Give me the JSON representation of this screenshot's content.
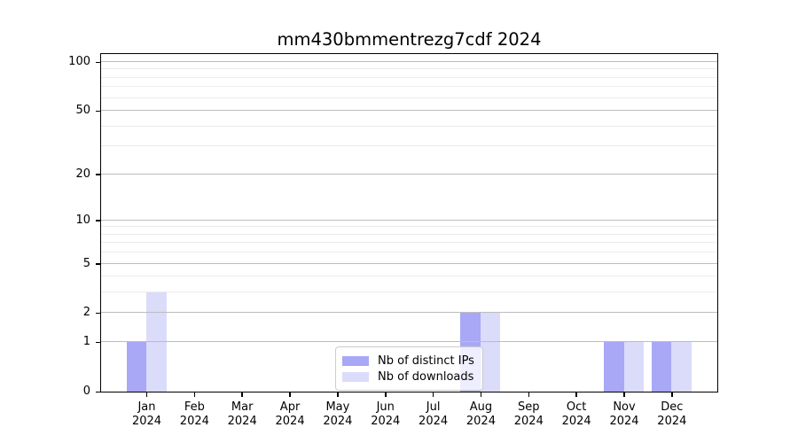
{
  "title": "mm430bmmentrezg7cdf 2024",
  "chart_data": {
    "type": "bar",
    "title": "mm430bmmentrezg7cdf 2024",
    "categories": [
      "Jan 2024",
      "Feb 2024",
      "Mar 2024",
      "Apr 2024",
      "May 2024",
      "Jun 2024",
      "Jul 2024",
      "Aug 2024",
      "Sep 2024",
      "Oct 2024",
      "Nov 2024",
      "Dec 2024"
    ],
    "series": [
      {
        "name": "Nb of distinct IPs",
        "color": "#a8a8f7",
        "values": [
          1,
          0,
          0,
          0,
          0,
          0,
          0,
          2,
          0,
          0,
          1,
          1
        ]
      },
      {
        "name": "Nb of downloads",
        "color": "#dbdbfa",
        "values": [
          3,
          0,
          0,
          0,
          0,
          0,
          0,
          2,
          0,
          0,
          1,
          1
        ]
      }
    ],
    "xlabel": "",
    "ylabel": "",
    "yscale": "log1p",
    "ylim": [
      0,
      112
    ],
    "yticks_major": [
      0,
      1,
      2,
      5,
      10,
      20,
      50,
      100
    ],
    "yticks_minor": [
      3,
      4,
      6,
      7,
      8,
      9,
      30,
      40,
      60,
      70,
      80,
      90
    ],
    "grid": true,
    "legend_position": "lower-center-inside"
  }
}
